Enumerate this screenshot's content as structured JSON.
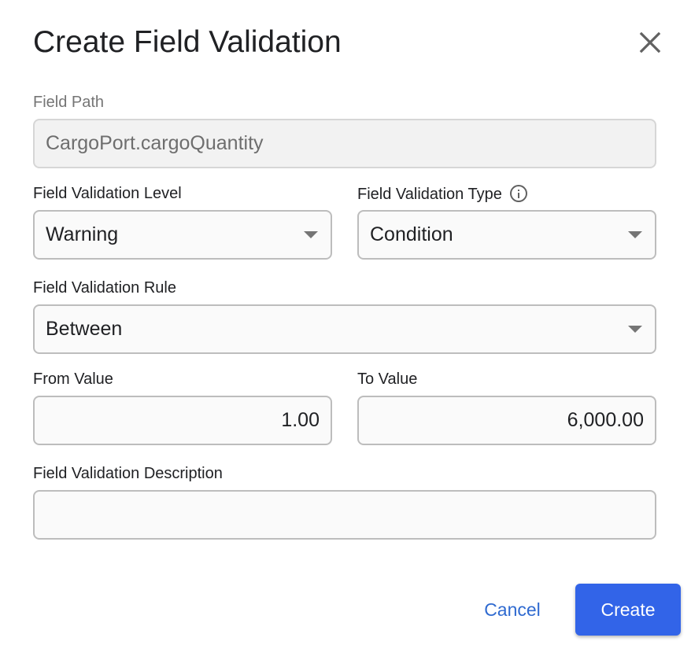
{
  "dialog": {
    "title": "Create Field Validation",
    "close_icon": "close-icon"
  },
  "fields": {
    "field_path": {
      "label": "Field Path",
      "value": "CargoPort.cargoQuantity",
      "disabled": true
    },
    "level": {
      "label": "Field Validation Level",
      "value": "Warning"
    },
    "type": {
      "label": "Field Validation Type",
      "value": "Condition",
      "icon": "info-icon"
    },
    "rule": {
      "label": "Field Validation Rule",
      "value": "Between"
    },
    "from_value": {
      "label": "From Value",
      "value": "1.00"
    },
    "to_value": {
      "label": "To Value",
      "value": "6,000.00"
    },
    "description": {
      "label": "Field Validation Description",
      "value": ""
    }
  },
  "actions": {
    "cancel_label": "Cancel",
    "create_label": "Create"
  },
  "colors": {
    "primary": "#3264e8",
    "link": "#2f6ad0",
    "border": "#bdbdbd"
  }
}
